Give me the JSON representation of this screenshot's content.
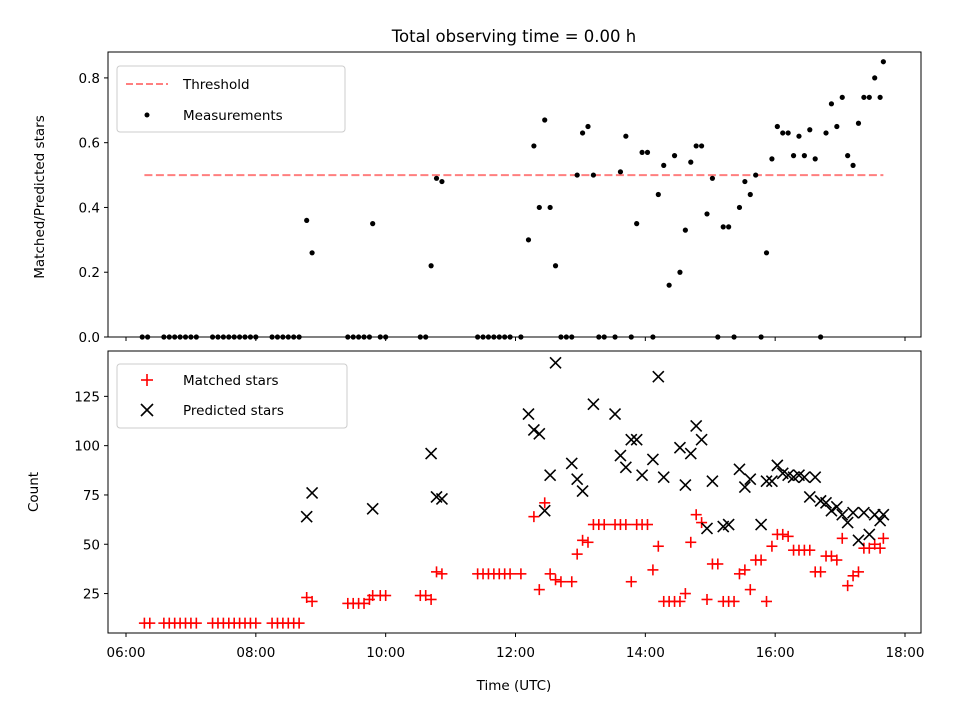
{
  "chart_data": [
    {
      "type": "scatter",
      "title": "Total observing time = 0.00 h",
      "xlabel": "",
      "ylabel": "Matched/Predicted stars",
      "xlim": [
        "06:00",
        "18:00"
      ],
      "ylim": [
        0,
        0.88
      ],
      "yticks": [
        0.0,
        0.2,
        0.4,
        0.6,
        0.8
      ],
      "ytick_labels": [
        "0.0",
        "0.2",
        "0.4",
        "0.6",
        "0.8"
      ],
      "legend_position": "top-left",
      "colors": {
        "threshold": "#ff7f7f",
        "measurements": "#000000"
      },
      "threshold": {
        "name": "Threshold",
        "y": 0.5,
        "x_range": [
          "06:17",
          "17:40"
        ]
      },
      "series": [
        {
          "name": "Measurements",
          "x": [
            "06:15",
            "06:20",
            "06:35",
            "06:40",
            "06:45",
            "06:50",
            "06:55",
            "07:00",
            "07:05",
            "07:20",
            "07:25",
            "07:30",
            "07:35",
            "07:40",
            "07:45",
            "07:50",
            "07:55",
            "08:00",
            "08:15",
            "08:20",
            "08:25",
            "08:30",
            "08:35",
            "08:40",
            "08:47",
            "08:52",
            "09:25",
            "09:30",
            "09:35",
            "09:40",
            "09:45",
            "09:48",
            "09:55",
            "10:00",
            "10:32",
            "10:37",
            "10:42",
            "10:47",
            "10:52",
            "11:25",
            "11:30",
            "11:35",
            "11:40",
            "11:45",
            "11:50",
            "11:55",
            "12:05",
            "12:12",
            "12:17",
            "12:22",
            "12:27",
            "12:32",
            "12:37",
            "12:42",
            "12:47",
            "12:52",
            "12:57",
            "13:02",
            "13:07",
            "13:12",
            "13:17",
            "13:22",
            "13:32",
            "13:37",
            "13:42",
            "13:47",
            "13:52",
            "13:57",
            "14:02",
            "14:07",
            "14:12",
            "14:17",
            "14:22",
            "14:27",
            "14:32",
            "14:37",
            "14:42",
            "14:47",
            "14:52",
            "14:57",
            "15:02",
            "15:07",
            "15:12",
            "15:17",
            "15:22",
            "15:27",
            "15:32",
            "15:37",
            "15:42",
            "15:47",
            "15:52",
            "15:57",
            "16:02",
            "16:07",
            "16:12",
            "16:17",
            "16:22",
            "16:27",
            "16:32",
            "16:37",
            "16:42",
            "16:47",
            "16:52",
            "16:57",
            "17:02",
            "17:07",
            "17:12",
            "17:17",
            "17:22",
            "17:27",
            "17:32",
            "17:37",
            "17:40"
          ],
          "y": [
            0,
            0,
            0,
            0,
            0,
            0,
            0,
            0,
            0,
            0,
            0,
            0,
            0,
            0,
            0,
            0,
            0,
            0,
            0,
            0,
            0,
            0,
            0,
            0,
            0.36,
            0.26,
            0,
            0,
            0,
            0,
            0,
            0.35,
            0,
            0,
            0,
            0,
            0.22,
            0.49,
            0.48,
            0,
            0,
            0,
            0,
            0,
            0,
            0,
            0,
            0.3,
            0.59,
            0.4,
            0.67,
            0.4,
            0.22,
            0,
            0,
            0,
            0.5,
            0.63,
            0.65,
            0.5,
            0,
            0,
            0,
            0.51,
            0.62,
            0,
            0.35,
            0.57,
            0.57,
            0,
            0.44,
            0.53,
            0.16,
            0.56,
            0.2,
            0.33,
            0.54,
            0.59,
            0.59,
            0.38,
            0.49,
            0,
            0.34,
            0.34,
            0,
            0.4,
            0.48,
            0.44,
            0.5,
            0,
            0.26,
            0.55,
            0.65,
            0.63,
            0.63,
            0.56,
            0.62,
            0.56,
            0.64,
            0.55,
            0,
            0.63,
            0.72,
            0.65,
            0.74,
            0.56,
            0.53,
            0.66,
            0.74,
            0.74,
            0.8,
            0.74,
            0.85
          ]
        }
      ]
    },
    {
      "type": "scatter",
      "title": "",
      "xlabel": "Time (UTC)",
      "ylabel": "Count",
      "xlim": [
        "06:00",
        "18:00"
      ],
      "xticks": [
        "06:00",
        "08:00",
        "10:00",
        "12:00",
        "14:00",
        "16:00",
        "18:00"
      ],
      "ylim": [
        5,
        148
      ],
      "yticks": [
        25,
        50,
        75,
        100,
        125
      ],
      "ytick_labels": [
        "25",
        "50",
        "75",
        "100",
        "125"
      ],
      "legend_position": "top-left",
      "colors": {
        "matched": "#ff0000",
        "predicted": "#000000"
      },
      "series": [
        {
          "name": "Matched stars",
          "marker": "+",
          "x": [
            "06:17",
            "06:22",
            "06:35",
            "06:40",
            "06:45",
            "06:50",
            "06:55",
            "07:00",
            "07:05",
            "07:20",
            "07:25",
            "07:30",
            "07:35",
            "07:40",
            "07:45",
            "07:50",
            "07:55",
            "08:00",
            "08:15",
            "08:20",
            "08:25",
            "08:30",
            "08:35",
            "08:40",
            "08:47",
            "08:52",
            "09:25",
            "09:30",
            "09:35",
            "09:40",
            "09:45",
            "09:48",
            "09:55",
            "10:00",
            "10:32",
            "10:37",
            "10:42",
            "10:47",
            "10:52",
            "11:25",
            "11:30",
            "11:35",
            "11:40",
            "11:45",
            "11:50",
            "11:55",
            "12:05",
            "12:17",
            "12:22",
            "12:27",
            "12:32",
            "12:37",
            "12:42",
            "12:52",
            "12:57",
            "13:02",
            "13:07",
            "13:12",
            "13:17",
            "13:22",
            "13:32",
            "13:37",
            "13:42",
            "13:47",
            "13:52",
            "13:57",
            "14:02",
            "14:07",
            "14:12",
            "14:17",
            "14:22",
            "14:27",
            "14:32",
            "14:37",
            "14:42",
            "14:47",
            "14:52",
            "14:57",
            "15:02",
            "15:07",
            "15:12",
            "15:17",
            "15:22",
            "15:27",
            "15:32",
            "15:37",
            "15:42",
            "15:47",
            "15:52",
            "15:57",
            "16:02",
            "16:07",
            "16:12",
            "16:17",
            "16:22",
            "16:27",
            "16:32",
            "16:37",
            "16:42",
            "16:47",
            "16:52",
            "16:57",
            "17:02",
            "17:07",
            "17:12",
            "17:17",
            "17:22",
            "17:27",
            "17:32",
            "17:37",
            "17:40"
          ],
          "y": [
            10,
            10,
            10,
            10,
            10,
            10,
            10,
            10,
            10,
            10,
            10,
            10,
            10,
            10,
            10,
            10,
            10,
            10,
            10,
            10,
            10,
            10,
            10,
            10,
            23,
            21,
            20,
            20,
            20,
            20,
            22,
            24,
            24,
            24,
            24,
            24,
            22,
            36,
            35,
            35,
            35,
            35,
            35,
            35,
            35,
            35,
            35,
            64,
            27,
            71,
            35,
            32,
            31,
            31,
            45,
            52,
            51,
            60,
            60,
            60,
            60,
            60,
            60,
            31,
            60,
            60,
            60,
            37,
            49,
            21,
            21,
            21,
            21,
            25,
            51,
            65,
            61,
            22,
            40,
            40,
            21,
            21,
            21,
            35,
            37,
            27,
            42,
            42,
            21,
            49,
            55,
            55,
            54,
            47,
            47,
            47,
            47,
            36,
            36,
            44,
            44,
            42,
            53,
            29,
            34,
            36,
            48,
            48,
            50,
            48,
            53
          ]
        },
        {
          "name": "Predicted stars",
          "marker": "x",
          "x": [
            "08:47",
            "08:52",
            "09:48",
            "10:42",
            "10:47",
            "10:52",
            "12:12",
            "12:17",
            "12:22",
            "12:27",
            "12:32",
            "12:37",
            "12:52",
            "12:57",
            "13:02",
            "13:12",
            "13:32",
            "13:37",
            "13:42",
            "13:47",
            "13:52",
            "13:57",
            "14:07",
            "14:12",
            "14:17",
            "14:32",
            "14:37",
            "14:42",
            "14:47",
            "14:52",
            "14:57",
            "15:02",
            "15:12",
            "15:17",
            "15:27",
            "15:32",
            "15:37",
            "15:47",
            "15:52",
            "15:57",
            "16:02",
            "16:07",
            "16:12",
            "16:17",
            "16:22",
            "16:27",
            "16:32",
            "16:37",
            "16:42",
            "16:47",
            "16:52",
            "16:57",
            "17:02",
            "17:07",
            "17:12",
            "17:17",
            "17:22",
            "17:27",
            "17:32",
            "17:37",
            "17:40"
          ],
          "y": [
            64,
            76,
            68,
            96,
            74,
            73,
            116,
            108,
            106,
            67,
            85,
            142,
            91,
            83,
            77,
            121,
            116,
            95,
            89,
            103,
            103,
            85,
            93,
            135,
            84,
            99,
            80,
            96,
            110,
            103,
            58,
            82,
            59,
            60,
            88,
            79,
            83,
            60,
            82,
            82,
            90,
            86,
            85,
            84,
            85,
            84,
            74,
            84,
            72,
            71,
            67,
            69,
            65,
            61,
            66,
            52,
            66,
            55,
            65,
            62,
            65
          ]
        }
      ]
    }
  ]
}
